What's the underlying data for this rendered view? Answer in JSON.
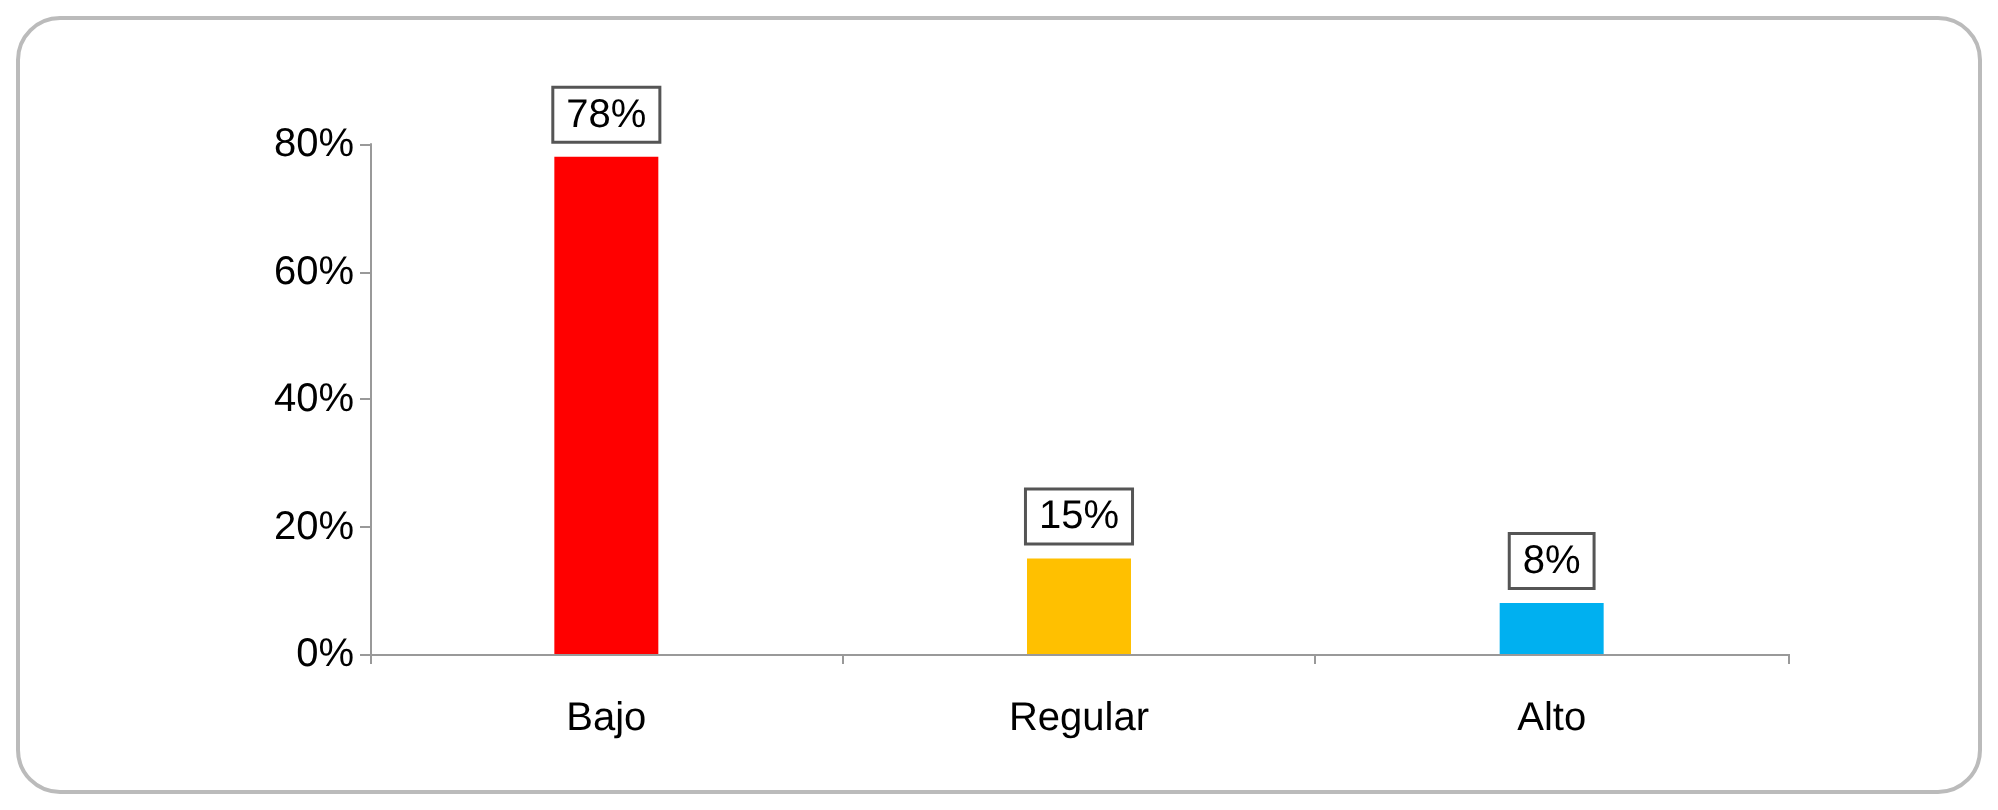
{
  "chart_data": {
    "type": "bar",
    "categories": [
      "Bajo",
      "Regular",
      "Alto"
    ],
    "values": [
      78,
      15,
      8
    ],
    "colors": [
      "#ff0000",
      "#ffc000",
      "#00b0f0"
    ],
    "value_labels": [
      "78%",
      "15%",
      "8%"
    ],
    "ylim": [
      0,
      80
    ],
    "yticks": [
      {
        "value": 0,
        "label": "0%"
      },
      {
        "value": 20,
        "label": "20%"
      },
      {
        "value": 40,
        "label": "40%"
      },
      {
        "value": 60,
        "label": "60%"
      },
      {
        "value": 80,
        "label": "80%"
      }
    ],
    "grid": false
  }
}
